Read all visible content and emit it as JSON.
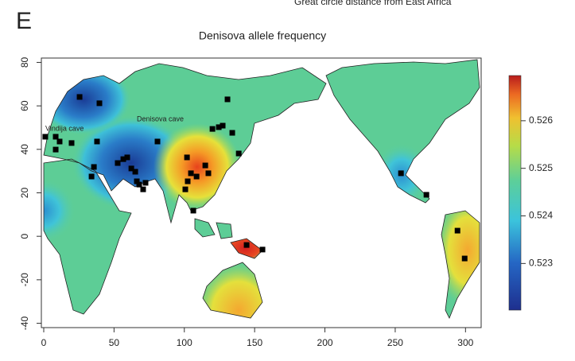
{
  "chart_data": {
    "type": "map",
    "header": "Great circle distance from East Africa",
    "panel": "E",
    "title": "Denisova allele frequency",
    "annotations": [
      "Vindija cave",
      "Denisova cave"
    ],
    "xlim": [
      0,
      310
    ],
    "ylim": [
      -42,
      82
    ],
    "xticks": [
      0,
      50,
      100,
      150,
      200,
      250,
      300
    ],
    "yticks": [
      -40,
      -20,
      0,
      20,
      40,
      60,
      80
    ],
    "points": {
      "color": "#000000",
      "x": [
        25.5,
        39.6,
        1.1,
        8.5,
        11.3,
        8.5,
        19.8,
        37.9,
        35.7,
        34.0,
        52.6,
        56.6,
        59.4,
        62.3,
        65.1,
        66.2,
        67.9,
        70.7,
        72.4,
        80.9,
        130.7,
        120.0,
        124.5,
        127.3,
        134.1,
        138.7,
        101.9,
        104.7,
        102.4,
        100.7,
        108.7,
        114.9,
        117.1,
        106.4,
        144.3,
        155.6,
        254.1,
        272.2,
        294.3,
        299.4
      ],
      "y": [
        64.1,
        61.2,
        45.8,
        45.8,
        43.6,
        39.9,
        42.9,
        43.6,
        31.9,
        27.5,
        33.7,
        35.5,
        36.3,
        31.2,
        29.7,
        25.3,
        23.8,
        21.6,
        24.6,
        43.6,
        63.0,
        49.4,
        50.2,
        50.9,
        47.6,
        38.1,
        36.3,
        29.0,
        25.3,
        21.6,
        27.5,
        32.6,
        29.0,
        11.8,
        -4.0,
        -6.1,
        29.0,
        19.1,
        2.6,
        -10.2
      ]
    },
    "colorbar": {
      "lim": [
        0.52202,
        0.52695
      ],
      "ticks": [
        0.523,
        0.524,
        0.525,
        0.526
      ]
    }
  }
}
